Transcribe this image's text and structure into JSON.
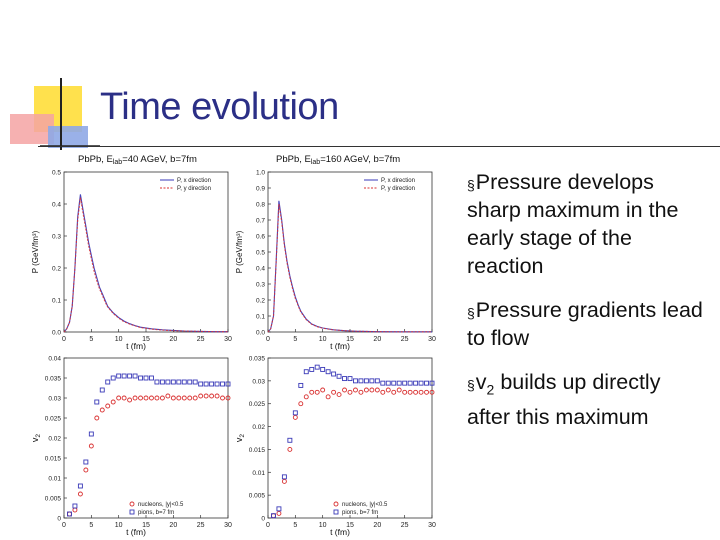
{
  "slide": {
    "title": "Time evolution",
    "colors": {
      "title": "#2b2f86",
      "red_series": "#d93030",
      "blue_series": "#3a3ab8"
    }
  },
  "bullets": [
    {
      "marker": "§",
      "text": "Pressure develops sharp maximum in the early stage of the reaction"
    },
    {
      "marker": "§",
      "text": "Pressure gradients lead to flow"
    },
    {
      "marker": "§",
      "prefix": "v",
      "sub": "2",
      "text": " builds up directly after this maximum"
    }
  ],
  "chart_data": [
    {
      "type": "line",
      "title": "PbPb, Elab=40 AGeV, b=7fm",
      "title_main": "PbPb, E",
      "title_sub": "lab",
      "title_rest": "=40 AGeV, b=7fm",
      "xlabel": "t (fm)",
      "ylabel": "P (GeV/fm³)",
      "xlim": [
        0,
        30
      ],
      "ylim": [
        0,
        0.5
      ],
      "xticks": [
        "0",
        "5",
        "10",
        "15",
        "20",
        "25",
        "30"
      ],
      "yticks": [
        "0.0",
        "0.1",
        "0.2",
        "0.3",
        "0.4",
        "0.5"
      ],
      "ytick_values": [
        0,
        0.1,
        0.2,
        0.3,
        0.4,
        0.5
      ],
      "legend": [
        "P, x direction",
        "P, y direction"
      ],
      "x": [
        0,
        0.5,
        1,
        1.5,
        2,
        2.5,
        3,
        3.5,
        4,
        4.5,
        5,
        5.5,
        6,
        6.5,
        7,
        7.5,
        8,
        9,
        10,
        11,
        12,
        13,
        14,
        16,
        18,
        20,
        22,
        25,
        28,
        30
      ],
      "series": [
        {
          "name": "P, x direction",
          "values": [
            0,
            0.01,
            0.03,
            0.08,
            0.2,
            0.36,
            0.43,
            0.38,
            0.33,
            0.28,
            0.24,
            0.2,
            0.17,
            0.14,
            0.12,
            0.1,
            0.08,
            0.06,
            0.045,
            0.034,
            0.026,
            0.02,
            0.015,
            0.01,
            0.007,
            0.005,
            0.003,
            0.002,
            0.001,
            0.001
          ]
        },
        {
          "name": "P, y direction",
          "values": [
            0,
            0.01,
            0.03,
            0.08,
            0.2,
            0.35,
            0.42,
            0.37,
            0.32,
            0.27,
            0.23,
            0.19,
            0.16,
            0.135,
            0.115,
            0.095,
            0.078,
            0.058,
            0.043,
            0.032,
            0.025,
            0.019,
            0.014,
            0.009,
            0.006,
            0.004,
            0.003,
            0.002,
            0.001,
            0.001
          ]
        }
      ]
    },
    {
      "type": "line",
      "title": "PbPb, Elab=160 AGeV, b=7fm",
      "title_main": "PbPb, E",
      "title_sub": "lab",
      "title_rest": "=160 AGeV, b=7fm",
      "xlabel": "t (fm)",
      "ylabel": "P (GeV/fm³)",
      "xlim": [
        0,
        30
      ],
      "ylim": [
        0,
        1.0
      ],
      "xticks": [
        "0",
        "5",
        "10",
        "15",
        "20",
        "25",
        "30"
      ],
      "yticks": [
        "0.0",
        "0.1",
        "0.2",
        "0.3",
        "0.4",
        "0.5",
        "0.6",
        "0.7",
        "0.8",
        "0.9",
        "1.0"
      ],
      "ytick_values": [
        0,
        0.1,
        0.2,
        0.3,
        0.4,
        0.5,
        0.6,
        0.7,
        0.8,
        0.9,
        1.0
      ],
      "legend": [
        "P, x direction",
        "P, y direction"
      ],
      "x": [
        0,
        0.5,
        1,
        1.5,
        2,
        2.5,
        3,
        3.5,
        4,
        4.5,
        5,
        5.5,
        6,
        7,
        8,
        9,
        10,
        12,
        14,
        16,
        20,
        25,
        30
      ],
      "series": [
        {
          "name": "P, x direction",
          "values": [
            0,
            0.02,
            0.1,
            0.45,
            0.82,
            0.7,
            0.55,
            0.44,
            0.35,
            0.28,
            0.22,
            0.17,
            0.13,
            0.08,
            0.05,
            0.035,
            0.025,
            0.014,
            0.008,
            0.005,
            0.002,
            0.001,
            0.001
          ]
        },
        {
          "name": "P, y direction",
          "values": [
            0,
            0.02,
            0.1,
            0.44,
            0.8,
            0.69,
            0.54,
            0.43,
            0.34,
            0.27,
            0.21,
            0.165,
            0.125,
            0.077,
            0.048,
            0.033,
            0.024,
            0.013,
            0.008,
            0.005,
            0.002,
            0.001,
            0.001
          ]
        }
      ]
    },
    {
      "type": "scatter",
      "xlabel": "t (fm)",
      "ylabel": "v2",
      "xlim": [
        0,
        30
      ],
      "ylim": [
        0,
        0.04
      ],
      "xticks": [
        "0",
        "5",
        "10",
        "15",
        "20",
        "25",
        "30"
      ],
      "yticks": [
        "0",
        "0.005",
        "0.01",
        "0.015",
        "0.02",
        "0.025",
        "0.03",
        "0.035",
        "0.04"
      ],
      "ytick_values": [
        0,
        0.005,
        0.01,
        0.015,
        0.02,
        0.025,
        0.03,
        0.035,
        0.04
      ],
      "legend": [
        "nucleons, |y|<0.5",
        "pions, b=7 fm"
      ],
      "x": [
        1,
        2,
        3,
        4,
        5,
        6,
        7,
        8,
        9,
        10,
        11,
        12,
        13,
        14,
        15,
        16,
        17,
        18,
        19,
        20,
        21,
        22,
        23,
        24,
        25,
        26,
        27,
        28,
        29,
        30
      ],
      "series": [
        {
          "name": "nucleons, |y|<0.5",
          "marker": "circle",
          "values": [
            0.001,
            0.002,
            0.006,
            0.012,
            0.018,
            0.025,
            0.027,
            0.028,
            0.029,
            0.03,
            0.03,
            0.0295,
            0.03,
            0.03,
            0.03,
            0.03,
            0.03,
            0.03,
            0.0305,
            0.03,
            0.03,
            0.03,
            0.03,
            0.03,
            0.0305,
            0.0305,
            0.0305,
            0.0305,
            0.03,
            0.03
          ]
        },
        {
          "name": "pions, b=7 fm",
          "marker": "square",
          "values": [
            0.001,
            0.003,
            0.008,
            0.014,
            0.021,
            0.029,
            0.032,
            0.034,
            0.035,
            0.0355,
            0.0355,
            0.0355,
            0.0355,
            0.035,
            0.035,
            0.035,
            0.034,
            0.034,
            0.034,
            0.034,
            0.034,
            0.034,
            0.034,
            0.034,
            0.0335,
            0.0335,
            0.0335,
            0.0335,
            0.0335,
            0.0335
          ]
        }
      ]
    },
    {
      "type": "scatter",
      "xlabel": "t (fm)",
      "ylabel": "v2",
      "xlim": [
        0,
        30
      ],
      "ylim": [
        0,
        0.035
      ],
      "xticks": [
        "0",
        "5",
        "10",
        "15",
        "20",
        "25",
        "30"
      ],
      "yticks": [
        "0",
        "0.005",
        "0.01",
        "0.015",
        "0.02",
        "0.025",
        "0.03",
        "0.035"
      ],
      "ytick_values": [
        0,
        0.005,
        0.01,
        0.015,
        0.02,
        0.025,
        0.03,
        0.035
      ],
      "legend": [
        "nucleons, |y|<0.5",
        "pions, b=7 fm"
      ],
      "x": [
        1,
        2,
        3,
        4,
        5,
        6,
        7,
        8,
        9,
        10,
        11,
        12,
        13,
        14,
        15,
        16,
        17,
        18,
        19,
        20,
        21,
        22,
        23,
        24,
        25,
        26,
        27,
        28,
        29,
        30
      ],
      "series": [
        {
          "name": "nucleons, |y|<0.5",
          "marker": "circle",
          "values": [
            0.0005,
            0.001,
            0.008,
            0.015,
            0.022,
            0.025,
            0.0265,
            0.0275,
            0.0275,
            0.028,
            0.0265,
            0.0275,
            0.027,
            0.028,
            0.0275,
            0.028,
            0.0275,
            0.028,
            0.028,
            0.028,
            0.0275,
            0.028,
            0.0275,
            0.028,
            0.0275,
            0.0275,
            0.0275,
            0.0275,
            0.0275,
            0.0275
          ]
        },
        {
          "name": "pions, b=7 fm",
          "marker": "square",
          "values": [
            0.0005,
            0.002,
            0.009,
            0.017,
            0.023,
            0.029,
            0.032,
            0.0325,
            0.033,
            0.0325,
            0.032,
            0.0315,
            0.031,
            0.0305,
            0.0305,
            0.03,
            0.03,
            0.03,
            0.03,
            0.03,
            0.0295,
            0.0295,
            0.0295,
            0.0295,
            0.0295,
            0.0295,
            0.0295,
            0.0295,
            0.0295,
            0.0295
          ]
        }
      ]
    }
  ]
}
